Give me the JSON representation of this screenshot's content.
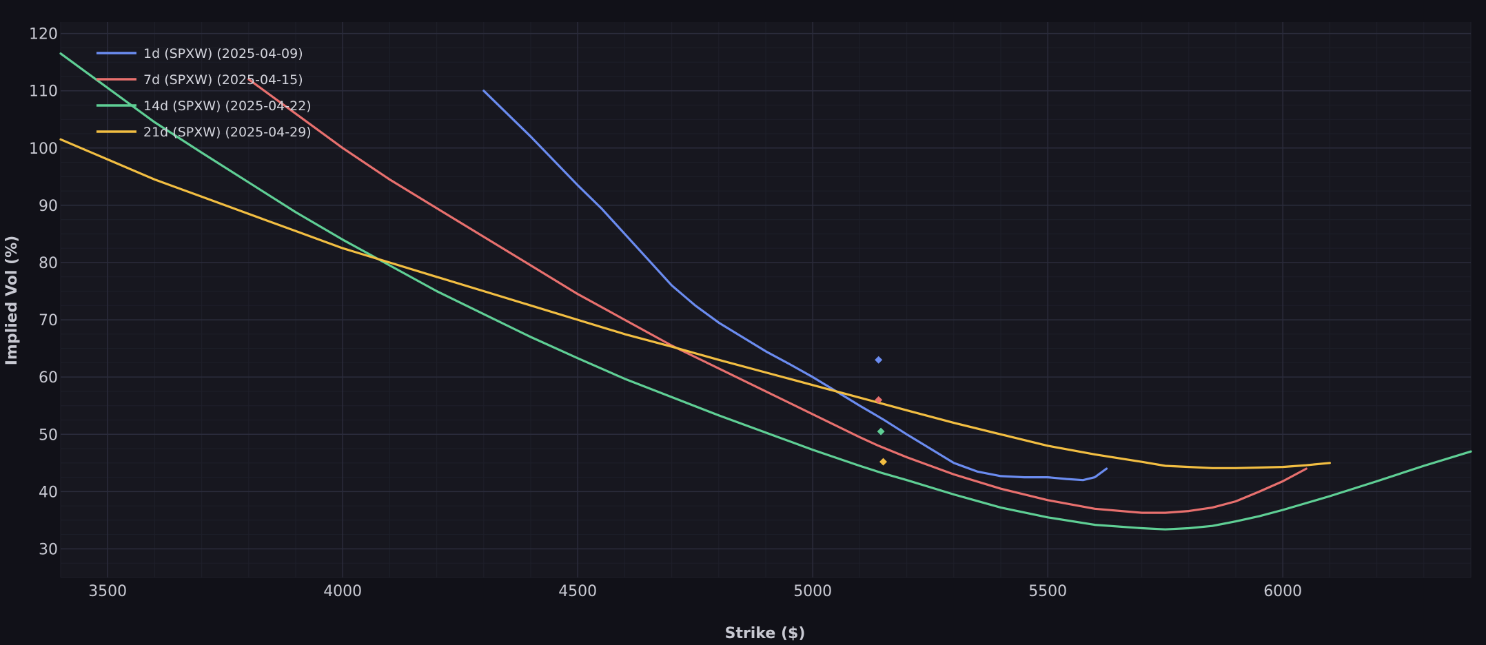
{
  "chart_data": {
    "type": "line",
    "xlabel": "Strike ($)",
    "ylabel": "Implied Vol (%)",
    "xlim": [
      3400,
      6400
    ],
    "ylim": [
      25,
      122
    ],
    "x_ticks": [
      3500,
      4000,
      4500,
      5000,
      5500,
      6000
    ],
    "y_ticks": [
      30,
      40,
      50,
      60,
      70,
      80,
      90,
      100,
      110,
      120
    ],
    "grid": true,
    "legend_position": "top-left",
    "colors": {
      "background": "#111118",
      "plot_background": "#17171f",
      "grid_major": "#2b2c3c",
      "grid_minor": "#1e1f2a"
    },
    "series": [
      {
        "name": "1d (SPXW) (2025-04-09)",
        "color": "#6b8cf0",
        "points": [
          [
            4300,
            110
          ],
          [
            4400,
            102
          ],
          [
            4500,
            93.5
          ],
          [
            4550,
            89.5
          ],
          [
            4600,
            85
          ],
          [
            4650,
            80.5
          ],
          [
            4700,
            76
          ],
          [
            4750,
            72.5
          ],
          [
            4800,
            69.5
          ],
          [
            4850,
            67
          ],
          [
            4900,
            64.5
          ],
          [
            4950,
            62.3
          ],
          [
            5000,
            60
          ],
          [
            5050,
            57.5
          ],
          [
            5100,
            55
          ],
          [
            5150,
            52.6
          ],
          [
            5200,
            50
          ],
          [
            5250,
            47.5
          ],
          [
            5300,
            45
          ],
          [
            5350,
            43.5
          ],
          [
            5400,
            42.7
          ],
          [
            5450,
            42.5
          ],
          [
            5500,
            42.5
          ],
          [
            5540,
            42.2
          ],
          [
            5575,
            42
          ],
          [
            5600,
            42.5
          ],
          [
            5625,
            44
          ]
        ],
        "marker": {
          "x": 5140,
          "y": 63
        }
      },
      {
        "name": "7d (SPXW) (2025-04-15)",
        "color": "#e8706e",
        "points": [
          [
            3800,
            112
          ],
          [
            3900,
            106
          ],
          [
            4000,
            100
          ],
          [
            4100,
            94.5
          ],
          [
            4200,
            89.5
          ],
          [
            4300,
            84.5
          ],
          [
            4400,
            79.5
          ],
          [
            4500,
            74.5
          ],
          [
            4600,
            70
          ],
          [
            4700,
            65.5
          ],
          [
            4800,
            61.5
          ],
          [
            4900,
            57.5
          ],
          [
            5000,
            53.5
          ],
          [
            5100,
            49.5
          ],
          [
            5140,
            48
          ],
          [
            5200,
            46
          ],
          [
            5300,
            43
          ],
          [
            5400,
            40.5
          ],
          [
            5500,
            38.5
          ],
          [
            5600,
            37
          ],
          [
            5700,
            36.3
          ],
          [
            5750,
            36.3
          ],
          [
            5800,
            36.6
          ],
          [
            5850,
            37.2
          ],
          [
            5900,
            38.3
          ],
          [
            5950,
            40
          ],
          [
            6000,
            41.8
          ],
          [
            6050,
            44
          ]
        ],
        "marker": {
          "x": 5140,
          "y": 56
        }
      },
      {
        "name": "14d (SPXW) (2025-04-22)",
        "color": "#5fcf95",
        "points": [
          [
            3400,
            116.5
          ],
          [
            3500,
            110.5
          ],
          [
            3600,
            104.5
          ],
          [
            3700,
            99.2
          ],
          [
            3800,
            94
          ],
          [
            3900,
            88.8
          ],
          [
            4000,
            84
          ],
          [
            4100,
            79.5
          ],
          [
            4200,
            75
          ],
          [
            4300,
            71
          ],
          [
            4400,
            67
          ],
          [
            4500,
            63.3
          ],
          [
            4600,
            59.7
          ],
          [
            4700,
            56.5
          ],
          [
            4800,
            53.3
          ],
          [
            4900,
            50.3
          ],
          [
            5000,
            47.3
          ],
          [
            5100,
            44.5
          ],
          [
            5145,
            43.3
          ],
          [
            5200,
            42
          ],
          [
            5300,
            39.5
          ],
          [
            5400,
            37.2
          ],
          [
            5500,
            35.5
          ],
          [
            5600,
            34.2
          ],
          [
            5700,
            33.6
          ],
          [
            5750,
            33.4
          ],
          [
            5800,
            33.6
          ],
          [
            5850,
            34
          ],
          [
            5900,
            34.8
          ],
          [
            5950,
            35.7
          ],
          [
            6000,
            36.8
          ],
          [
            6100,
            39.2
          ],
          [
            6200,
            41.8
          ],
          [
            6300,
            44.5
          ],
          [
            6400,
            47
          ]
        ],
        "marker": {
          "x": 5145,
          "y": 50.5
        }
      },
      {
        "name": "21d (SPXW) (2025-04-29)",
        "color": "#f2be42",
        "points": [
          [
            3400,
            101.5
          ],
          [
            3500,
            98
          ],
          [
            3600,
            94.5
          ],
          [
            3700,
            91.5
          ],
          [
            3800,
            88.5
          ],
          [
            3900,
            85.5
          ],
          [
            4000,
            82.5
          ],
          [
            4100,
            80
          ],
          [
            4200,
            77.5
          ],
          [
            4300,
            75
          ],
          [
            4400,
            72.5
          ],
          [
            4500,
            70
          ],
          [
            4600,
            67.5
          ],
          [
            4700,
            65.3
          ],
          [
            4800,
            63
          ],
          [
            4900,
            60.8
          ],
          [
            5000,
            58.6
          ],
          [
            5100,
            56.4
          ],
          [
            5150,
            55.3
          ],
          [
            5200,
            54.2
          ],
          [
            5300,
            52
          ],
          [
            5400,
            50
          ],
          [
            5500,
            48
          ],
          [
            5600,
            46.5
          ],
          [
            5700,
            45.2
          ],
          [
            5750,
            44.5
          ],
          [
            5800,
            44.3
          ],
          [
            5850,
            44.1
          ],
          [
            5900,
            44.1
          ],
          [
            5950,
            44.2
          ],
          [
            6000,
            44.3
          ],
          [
            6050,
            44.6
          ],
          [
            6100,
            45
          ]
        ],
        "marker": {
          "x": 5150,
          "y": 45.2
        }
      }
    ]
  }
}
